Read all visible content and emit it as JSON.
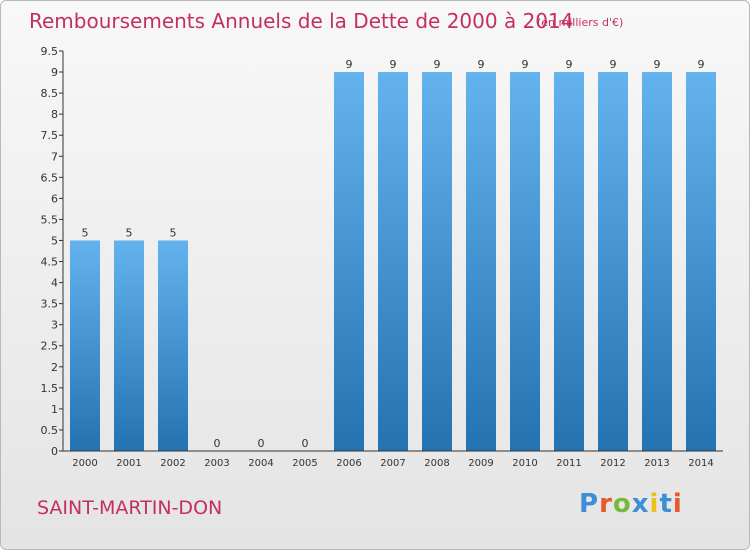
{
  "title": "Remboursements Annuels de la Dette de 2000 à 2014",
  "subtitle": "(en milliers d'€)",
  "commune": "SAINT-MARTIN-DON",
  "logo": {
    "text": "Proxiti",
    "colors": [
      "#3a8fd6",
      "#e8582c",
      "#7ab83c",
      "#3a8fd6",
      "#e8c21c",
      "#3a8fd6",
      "#e8582c"
    ]
  },
  "colors": {
    "title": "#c2305f",
    "bar_light": "#64b2ee",
    "bar_dark": "#2472b0",
    "axis": "#333333"
  },
  "chart_data": {
    "type": "bar",
    "categories": [
      "2000",
      "2001",
      "2002",
      "2003",
      "2004",
      "2005",
      "2006",
      "2007",
      "2008",
      "2009",
      "2010",
      "2011",
      "2012",
      "2013",
      "2014"
    ],
    "values": [
      5,
      5,
      5,
      0,
      0,
      0,
      9,
      9,
      9,
      9,
      9,
      9,
      9,
      9,
      9
    ],
    "data_labels": [
      "5",
      "5",
      "5",
      "0",
      "0",
      "0",
      "9",
      "9",
      "9",
      "9",
      "9",
      "9",
      "9",
      "9",
      "9"
    ],
    "ylim": [
      0,
      9.5
    ],
    "yticks": [
      "0",
      "0.5",
      "1",
      "1.5",
      "2",
      "2.5",
      "3",
      "3.5",
      "4",
      "4.5",
      "5",
      "5.5",
      "6",
      "6.5",
      "7",
      "7.5",
      "8",
      "8.5",
      "9",
      "9.5"
    ],
    "grid": false
  }
}
